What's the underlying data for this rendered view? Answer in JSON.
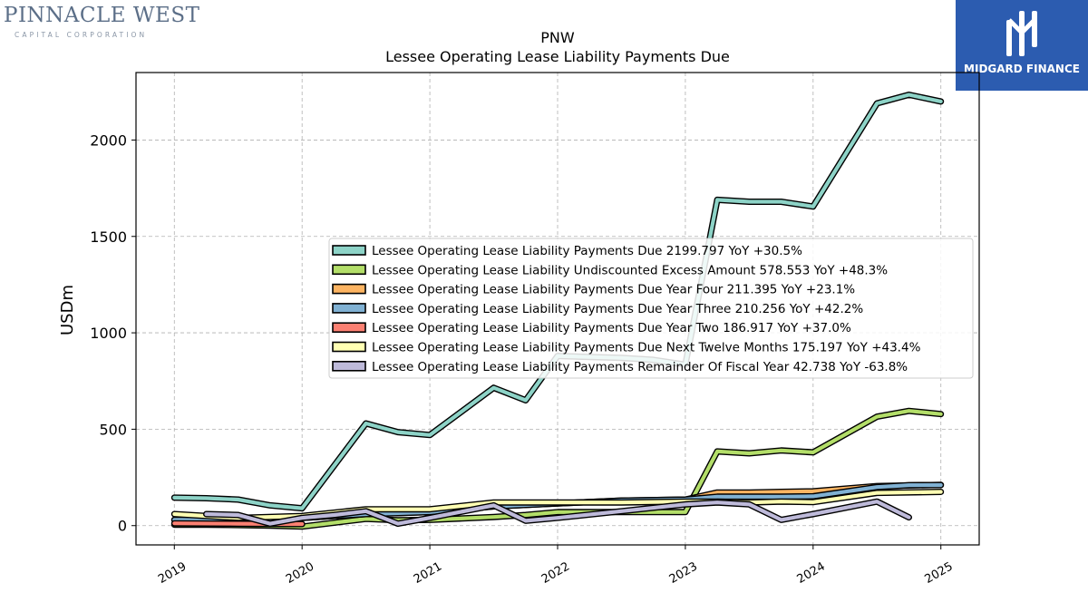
{
  "header": {
    "company_name": "PINNACLE WEST",
    "company_subtitle": "CAPITAL CORPORATION",
    "badge_text": "MIDGARD FINANCE"
  },
  "chart_data": {
    "type": "line",
    "title": "PNW",
    "subtitle": "Lessee Operating Lease Liability Payments Due",
    "ylabel": "USDm",
    "xlabel": "",
    "ylim": [
      -100,
      2350
    ],
    "yticks": [
      0,
      500,
      1000,
      1500,
      2000
    ],
    "xlim": [
      2018.7,
      2025.3
    ],
    "xticks": [
      2019,
      2020,
      2021,
      2022,
      2023,
      2024,
      2025
    ],
    "xtick_labels": [
      "2019",
      "2020",
      "2021",
      "2022",
      "2023",
      "2024",
      "2025"
    ],
    "grid": true,
    "legend_position": "center-right",
    "series": [
      {
        "name": "Lessee Operating Lease Liability Payments Due",
        "legend": "Lessee Operating Lease Liability Payments Due  2199.797 YoY +30.5%",
        "color": "#8dd3c7",
        "x": [
          2019.0,
          2019.25,
          2019.5,
          2019.75,
          2020.0,
          2020.5,
          2020.75,
          2021.0,
          2021.5,
          2021.75,
          2022.0,
          2022.25,
          2022.5,
          2022.75,
          2023.0,
          2023.25,
          2023.5,
          2023.75,
          2024.0,
          2024.5,
          2024.75,
          2025.0
        ],
        "y": [
          145,
          142,
          135,
          105,
          90,
          530,
          485,
          470,
          715,
          650,
          880,
          875,
          870,
          860,
          835,
          1690,
          1680,
          1680,
          1655,
          2190,
          2235,
          2199.797
        ]
      },
      {
        "name": "Lessee Operating Lease Liability Undiscounted Excess Amount",
        "legend": "Lessee Operating Lease Liability Undiscounted Excess Amount  578.553 YoY +48.3%",
        "color": "#b3de69",
        "x": [
          2019.0,
          2019.25,
          2019.5,
          2019.75,
          2020.0,
          2020.5,
          2020.75,
          2021.0,
          2021.5,
          2021.75,
          2022.0,
          2022.25,
          2022.5,
          2022.75,
          2023.0,
          2023.25,
          2023.5,
          2023.75,
          2024.0,
          2024.5,
          2024.75,
          2025.0
        ],
        "y": [
          5,
          5,
          3,
          0,
          -5,
          35,
          28,
          30,
          45,
          55,
          70,
          70,
          70,
          70,
          70,
          385,
          375,
          390,
          380,
          565,
          595,
          578.553
        ]
      },
      {
        "name": "Lessee Operating Lease Liability Payments Due Year Four",
        "legend": "Lessee Operating Lease Liability Payments Due Year Four  211.395 YoY +23.1%",
        "color": "#fdb462",
        "x": [
          2019.0,
          2019.5,
          2020.0,
          2020.5,
          2021.0,
          2021.5,
          2022.0,
          2022.5,
          2023.0,
          2023.25,
          2023.5,
          2023.75,
          2024.0,
          2024.5,
          2025.0
        ],
        "y": [
          30,
          30,
          40,
          60,
          70,
          100,
          115,
          130,
          135,
          172,
          172,
          175,
          178,
          205,
          211.395
        ]
      },
      {
        "name": "Lessee Operating Lease Liability Payments Due Year Three",
        "legend": "Lessee Operating Lease Liability Payments Due Year Three  210.256 YoY +42.2%",
        "color": "#80b1d3",
        "x": [
          2019.0,
          2019.5,
          2020.0,
          2020.5,
          2021.0,
          2021.5,
          2022.0,
          2022.5,
          2023.0,
          2023.25,
          2023.5,
          2023.75,
          2024.0,
          2024.5,
          2024.75,
          2025.0
        ],
        "y": [
          30,
          30,
          40,
          60,
          70,
          100,
          115,
          130,
          135,
          150,
          150,
          150,
          152,
          200,
          210,
          210.256
        ]
      },
      {
        "name": "Lessee Operating Lease Liability Payments Due Year Two",
        "legend": "Lessee Operating Lease Liability Payments Due Year Two  186.917 YoY +37.0%",
        "color": "#fb8072",
        "x": [
          2019.0,
          2019.5,
          2020.0
        ],
        "y": [
          12,
          10,
          8
        ]
      },
      {
        "name": "Lessee Operating Lease Liability Payments Due Next Twelve Months",
        "legend": "Lessee Operating Lease Liability Payments Due Next Twelve Months  175.197 YoY +43.4%",
        "color": "#ffffb3",
        "x": [
          2019.0,
          2019.5,
          2020.0,
          2020.5,
          2021.0,
          2021.5,
          2022.0,
          2022.5,
          2023.0,
          2023.25,
          2023.5,
          2023.75,
          2024.0,
          2024.5,
          2025.0
        ],
        "y": [
          60,
          40,
          50,
          85,
          85,
          120,
          120,
          120,
          125,
          125,
          120,
          125,
          122,
          170,
          175.197
        ]
      },
      {
        "name": "Lessee Operating Lease Liability Payments Remainder Of Fiscal Year",
        "legend": "Lessee Operating Lease Liability Payments Remainder Of Fiscal Year  42.738 YoY -63.8%",
        "color": "#bebada",
        "x": [
          2019.25,
          2019.5,
          2019.75,
          2020.0,
          2020.25,
          2020.5,
          2020.75,
          2021.0,
          2021.5,
          2021.75,
          2022.0,
          2022.5,
          2023.0,
          2023.25,
          2023.5,
          2023.75,
          2024.0,
          2024.5,
          2024.75
        ],
        "y": [
          60,
          55,
          10,
          40,
          55,
          75,
          10,
          40,
          105,
          25,
          40,
          75,
          110,
          120,
          110,
          30,
          60,
          125,
          42.738
        ]
      }
    ]
  }
}
